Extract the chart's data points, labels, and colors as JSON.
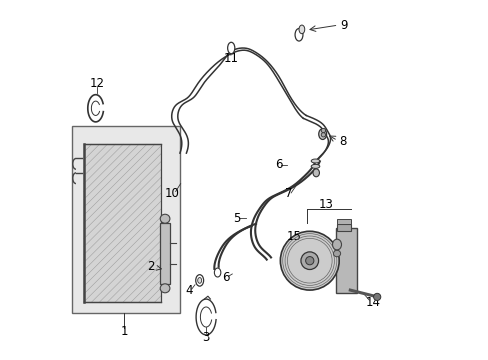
{
  "background_color": "#ffffff",
  "figsize": [
    4.89,
    3.6
  ],
  "dpi": 100,
  "line_color": "#333333",
  "label_color": "#000000",
  "label_fontsize": 8.5
}
